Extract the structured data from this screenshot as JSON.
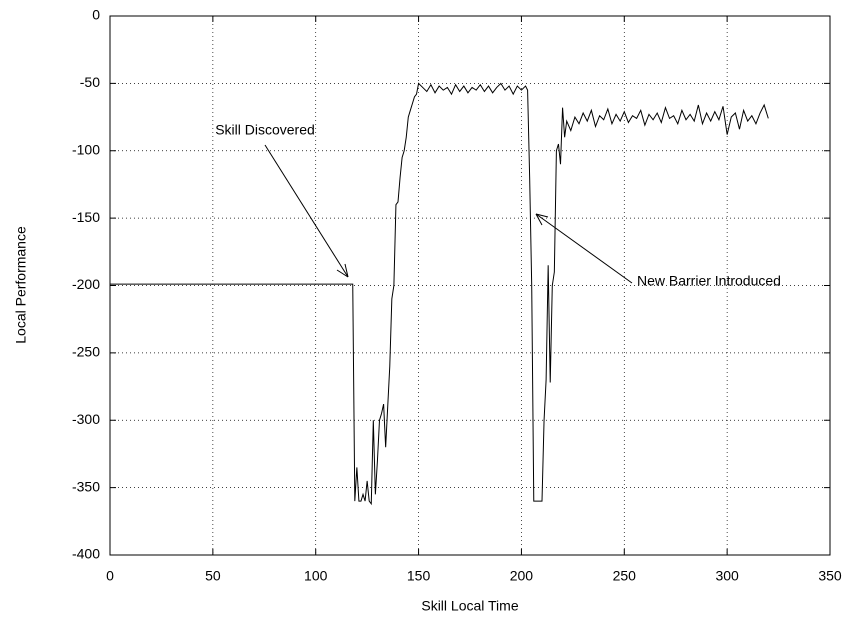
{
  "chart_data": {
    "type": "line",
    "xlabel": "Skill Local Time",
    "ylabel": "Local Performance",
    "x": [
      0,
      118,
      119,
      120,
      121,
      122,
      123,
      124,
      125,
      126,
      127,
      128,
      129,
      130,
      131,
      132,
      133,
      134,
      135,
      136,
      137,
      138,
      139,
      140,
      141,
      142,
      143,
      144,
      145,
      146,
      147,
      148,
      149,
      150,
      152,
      154,
      156,
      158,
      160,
      162,
      164,
      166,
      168,
      170,
      172,
      174,
      176,
      178,
      180,
      182,
      184,
      186,
      188,
      190,
      192,
      194,
      196,
      198,
      200,
      202,
      203,
      204,
      205,
      206,
      210,
      211,
      212,
      213,
      214,
      215,
      216,
      217,
      218,
      219,
      220,
      221,
      222,
      224,
      226,
      228,
      230,
      232,
      234,
      236,
      238,
      240,
      242,
      244,
      246,
      248,
      250,
      252,
      254,
      256,
      258,
      260,
      262,
      264,
      266,
      268,
      270,
      272,
      274,
      276,
      278,
      280,
      282,
      284,
      286,
      288,
      290,
      292,
      294,
      296,
      298,
      300,
      302,
      304,
      306,
      308,
      310,
      312,
      314,
      316,
      318,
      320
    ],
    "values": [
      -199,
      -199,
      -360,
      -335,
      -360,
      -360,
      -355,
      -360,
      -345,
      -360,
      -362,
      -300,
      -355,
      -330,
      -300,
      -295,
      -288,
      -320,
      -290,
      -260,
      -210,
      -200,
      -140,
      -138,
      -120,
      -105,
      -100,
      -90,
      -75,
      -70,
      -65,
      -60,
      -58,
      -50,
      -53,
      -56,
      -51,
      -57,
      -52,
      -55,
      -53,
      -58,
      -51,
      -56,
      -52,
      -57,
      -53,
      -55,
      -51,
      -56,
      -52,
      -57,
      -53,
      -50,
      -55,
      -52,
      -58,
      -52,
      -55,
      -52,
      -55,
      -120,
      -200,
      -360,
      -360,
      -300,
      -270,
      -185,
      -272,
      -200,
      -190,
      -100,
      -95,
      -110,
      -68,
      -90,
      -78,
      -85,
      -75,
      -80,
      -72,
      -78,
      -70,
      -82,
      -74,
      -77,
      -69,
      -80,
      -73,
      -78,
      -71,
      -79,
      -74,
      -76,
      -70,
      -81,
      -73,
      -77,
      -72,
      -79,
      -68,
      -76,
      -74,
      -80,
      -70,
      -77,
      -73,
      -78,
      -66,
      -80,
      -72,
      -78,
      -71,
      -77,
      -67,
      -88,
      -75,
      -72,
      -84,
      -70,
      -78,
      -74,
      -80,
      -72,
      -66,
      -76
    ],
    "color": "#000000",
    "xlim": [
      0,
      350
    ],
    "xticks": [
      0,
      50,
      100,
      150,
      200,
      250,
      300,
      350
    ],
    "ylim": [
      -400,
      0
    ],
    "yticks": [
      0,
      -50,
      -100,
      -150,
      -200,
      -250,
      -300,
      -350,
      -400
    ],
    "grid": true,
    "annotations": [
      "Skill Discovered",
      "New Barrier Introduced"
    ]
  }
}
